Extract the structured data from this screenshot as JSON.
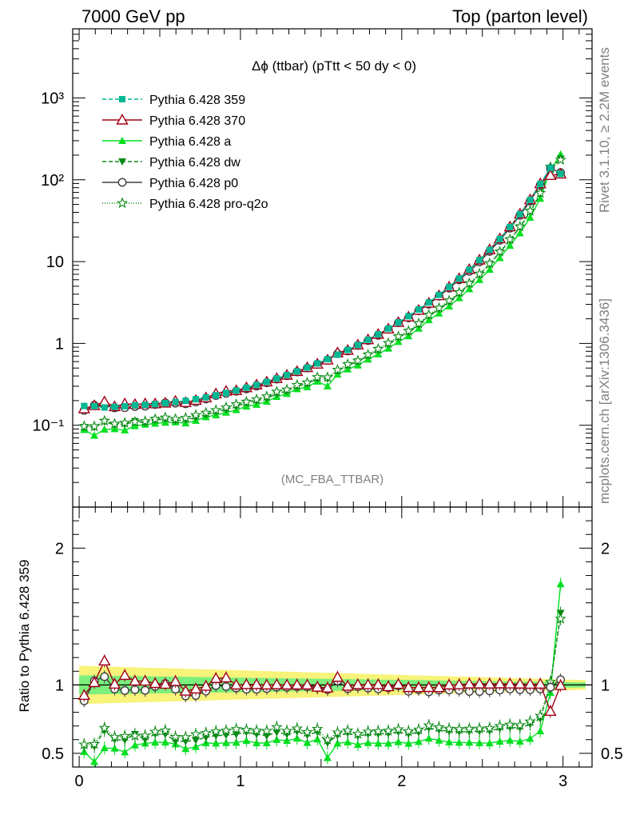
{
  "header": {
    "left": "7000 GeV pp",
    "right": "Top (parton level)"
  },
  "side_labels": {
    "rivet": "Rivet 3.1.10, ≥ 2.2M events",
    "mcplots": "mcplots.cern.ch [arXiv:1306.3436]"
  },
  "chart_data": {
    "type": "line",
    "title": "Δϕ (ttbar) (pTtt < 50 dy < 0)",
    "watermark": "(MC_FBA_TTBAR)",
    "ratio_ylabel": "Ratio to Pythia 6.428 359",
    "main_yscale": "log",
    "main_ylim": [
      0.01,
      7000
    ],
    "ratio_ylim": [
      0.4,
      2.3
    ],
    "xlim": [
      -0.04,
      3.18
    ],
    "x_ticks": [
      "0",
      "1",
      "2",
      "3"
    ],
    "main_y_ticks": [
      "10⁻¹",
      "1",
      "10",
      "10²",
      "10³"
    ],
    "ratio_y_ticks": [
      "0.5",
      "1",
      "2"
    ],
    "legend_position": "top-left",
    "x": [
      0.031,
      0.094,
      0.157,
      0.22,
      0.283,
      0.346,
      0.409,
      0.471,
      0.534,
      0.597,
      0.66,
      0.723,
      0.786,
      0.848,
      0.911,
      0.974,
      1.037,
      1.1,
      1.163,
      1.225,
      1.288,
      1.351,
      1.414,
      1.477,
      1.54,
      1.602,
      1.665,
      1.728,
      1.791,
      1.854,
      1.917,
      1.979,
      2.042,
      2.105,
      2.168,
      2.231,
      2.294,
      2.356,
      2.419,
      2.482,
      2.545,
      2.608,
      2.671,
      2.733,
      2.796,
      2.859,
      2.922,
      2.985,
      3.048,
      3.111
    ],
    "series": [
      {
        "name": "Pythia 6.428 359",
        "color": "#00b894",
        "dash": "5,3",
        "marker": "square",
        "values": [
          0.172,
          0.171,
          0.165,
          0.168,
          0.171,
          0.175,
          0.178,
          0.181,
          0.186,
          0.192,
          0.199,
          0.208,
          0.219,
          0.232,
          0.248,
          0.266,
          0.287,
          0.311,
          0.339,
          0.372,
          0.41,
          0.455,
          0.507,
          0.569,
          0.642,
          0.729,
          0.833,
          0.958,
          1.109,
          1.293,
          1.52,
          1.8,
          2.15,
          2.6,
          3.17,
          3.92,
          4.9,
          6.2,
          7.98,
          10.4,
          13.9,
          18.9,
          26.4,
          38.0,
          56.8,
          89.0,
          140.0,
          118.0,
          null,
          null
        ]
      },
      {
        "name": "Pythia 6.428 370",
        "color": "#a00018",
        "dash": "",
        "marker": "triangle-open",
        "values": [
          0.159,
          0.174,
          0.194,
          0.169,
          0.183,
          0.18,
          0.183,
          0.183,
          0.187,
          0.197,
          0.19,
          0.202,
          0.217,
          0.243,
          0.261,
          0.266,
          0.288,
          0.312,
          0.339,
          0.373,
          0.41,
          0.455,
          0.507,
          0.56,
          0.628,
          0.77,
          0.826,
          0.96,
          1.111,
          1.296,
          1.502,
          1.809,
          2.109,
          2.549,
          3.112,
          3.845,
          4.9,
          6.21,
          8.04,
          10.48,
          14.0,
          19.05,
          26.6,
          38.25,
          57.1,
          89.55,
          113.0,
          117.5,
          null,
          null
        ]
      },
      {
        "name": "Pythia 6.428 a",
        "color": "#00e020",
        "dash": "",
        "marker": "triangle",
        "values": [
          0.088,
          0.075,
          0.089,
          0.09,
          0.087,
          0.098,
          0.102,
          0.105,
          0.108,
          0.109,
          0.106,
          0.114,
          0.126,
          0.133,
          0.143,
          0.154,
          0.17,
          0.179,
          0.195,
          0.223,
          0.243,
          0.277,
          0.293,
          0.343,
          0.3,
          0.418,
          0.484,
          0.54,
          0.64,
          0.74,
          0.87,
          1.05,
          1.23,
          1.52,
          1.93,
          2.33,
          2.85,
          3.59,
          4.62,
          5.99,
          7.99,
          11.1,
          15.7,
          22.3,
          34.5,
          59.0,
          132.0,
          205.0,
          null,
          null
        ]
      },
      {
        "name": "Pythia 6.428 dw",
        "color": "#0a8a16",
        "dash": "5,3",
        "marker": "triangle-down",
        "values": [
          0.095,
          0.094,
          0.11,
          0.101,
          0.102,
          0.112,
          0.107,
          0.116,
          0.119,
          0.113,
          0.117,
          0.124,
          0.135,
          0.146,
          0.157,
          0.17,
          0.188,
          0.199,
          0.213,
          0.243,
          0.262,
          0.3,
          0.321,
          0.373,
          0.37,
          0.46,
          0.54,
          0.6,
          0.71,
          0.83,
          0.98,
          1.18,
          1.38,
          1.7,
          2.17,
          2.63,
          3.24,
          4.08,
          5.27,
          6.89,
          9.24,
          12.87,
          18.2,
          26.07,
          40.5,
          67.0,
          140.0,
          180.0,
          null,
          null
        ]
      },
      {
        "name": "Pythia 6.428 p0",
        "color": "#404040",
        "dash": "",
        "marker": "circle-open",
        "values": [
          0.152,
          0.176,
          0.175,
          0.163,
          0.164,
          0.169,
          0.171,
          0.179,
          0.188,
          0.186,
          0.183,
          0.192,
          0.209,
          0.231,
          0.245,
          0.26,
          0.278,
          0.301,
          0.33,
          0.366,
          0.403,
          0.449,
          0.5,
          0.557,
          0.62,
          0.75,
          0.81,
          0.945,
          1.084,
          1.256,
          1.487,
          1.79,
          2.05,
          2.51,
          3.01,
          3.77,
          4.72,
          5.96,
          7.6,
          9.9,
          13.3,
          18.2,
          25.6,
          36.7,
          54.8,
          86.4,
          137.6,
          122.5,
          null,
          null
        ]
      },
      {
        "name": "Pythia 6.428 pro-q2o",
        "color": "#0a8a16",
        "dash": "1,2",
        "marker": "star",
        "values": [
          0.097,
          0.097,
          0.113,
          0.104,
          0.107,
          0.11,
          0.112,
          0.119,
          0.124,
          0.119,
          0.123,
          0.133,
          0.142,
          0.153,
          0.165,
          0.18,
          0.193,
          0.207,
          0.225,
          0.257,
          0.272,
          0.31,
          0.332,
          0.386,
          0.385,
          0.475,
          0.555,
          0.615,
          0.73,
          0.855,
          1.01,
          1.215,
          1.42,
          1.75,
          2.23,
          2.705,
          3.33,
          4.195,
          5.42,
          7.08,
          9.5,
          13.22,
          18.7,
          26.8,
          41.6,
          68.9,
          143.0,
          175.0,
          null,
          null
        ]
      }
    ]
  }
}
